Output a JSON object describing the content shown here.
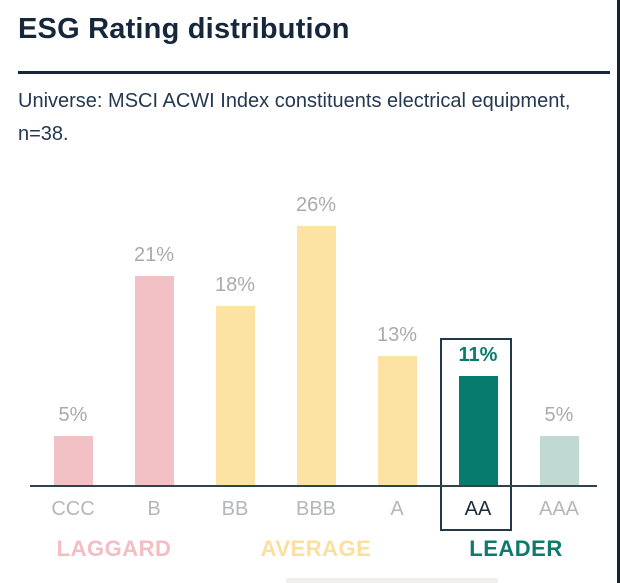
{
  "header": {
    "title": "ESG Rating distribution",
    "subtitle": "Universe: MSCI ACWI Index constituents electrical equipment, n=38.",
    "subtitle_lines": [
      "Universe: MSCI ACWI Index constituents electrical equipment,",
      "n=38."
    ]
  },
  "chart_data": {
    "type": "bar",
    "title": "ESG Rating distribution",
    "categories": [
      "CCC",
      "B",
      "BB",
      "BBB",
      "A",
      "AA",
      "AAA"
    ],
    "values": [
      5,
      21,
      18,
      26,
      13,
      11,
      5
    ],
    "value_labels": [
      "5%",
      "21%",
      "18%",
      "26%",
      "13%",
      "11%",
      "5%"
    ],
    "bar_colors": [
      "#f2c1c6",
      "#f2c1c6",
      "#fce3a3",
      "#fce3a3",
      "#fce3a3",
      "#087c6c",
      "#c0d9d3"
    ],
    "highlighted_category": "AA",
    "highlighted_index": 5,
    "ylim": [
      0,
      30
    ],
    "grid": false,
    "legend": "none",
    "xlabel": "",
    "ylabel": "",
    "groups": [
      {
        "label": "LAGGARD",
        "color": "#f4bcc3",
        "categories": [
          "CCC",
          "B"
        ]
      },
      {
        "label": "AVERAGE",
        "color": "#fbdf9e",
        "categories": [
          "BB",
          "BBB",
          "A"
        ]
      },
      {
        "label": "LEADER",
        "color": "#0b7c6b",
        "categories": [
          "AA",
          "AAA"
        ]
      }
    ]
  },
  "colors": {
    "title_navy": "#16273c",
    "subtitle_navy": "#243850",
    "axis": "#31424f",
    "laggard_pink": "#f2c1c6",
    "average_yellow": "#fce3a3",
    "leader_teal": "#087c6c",
    "leader_light_teal": "#c0d9d3",
    "value_label_gray": "#a8abad",
    "category_label_gray": "#b4b7b9",
    "highlight_box_border": "#1f3a49"
  }
}
